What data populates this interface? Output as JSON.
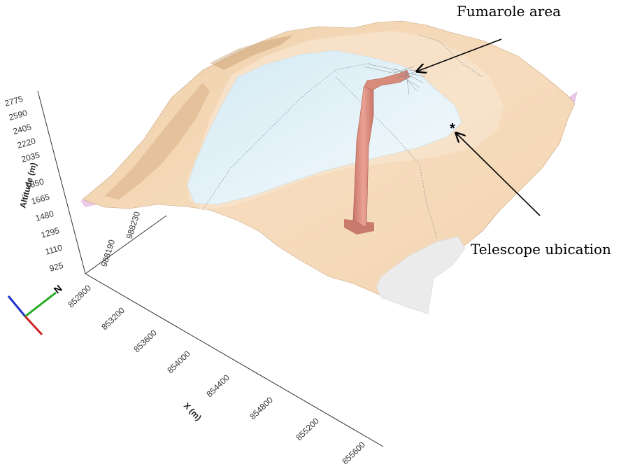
{
  "figure": {
    "annotations": [
      {
        "id": "fumarole",
        "text": "Fumarole area"
      },
      {
        "id": "telescope",
        "text": "Telescope ubication",
        "marker": "*"
      }
    ],
    "axes": {
      "altitude": {
        "label": "Altitude (m)",
        "ticks": [
          "925",
          "1110",
          "1295",
          "1480",
          "1665",
          "1850",
          "2035",
          "2220",
          "2405",
          "2590",
          "2775"
        ]
      },
      "x": {
        "label": "X (m)",
        "ticks": [
          "852800",
          "853200",
          "853600",
          "854000",
          "854400",
          "854800",
          "855200",
          "855600"
        ]
      },
      "y": {
        "label": "",
        "ticks": [
          "988190",
          "988230"
        ]
      }
    },
    "orientation_triad": {
      "label": "N"
    },
    "colors": {
      "terrain": "#f4d9b9",
      "terrain_shadow": "#d9b48a",
      "glacier": "#e4f2f8",
      "tunnel": "#d98f80",
      "snow_patch": "#ececec",
      "pink_edge": "#e8c6e6",
      "triad_x": "#cc2222",
      "triad_y": "#22aa22",
      "triad_z": "#2233cc"
    }
  }
}
